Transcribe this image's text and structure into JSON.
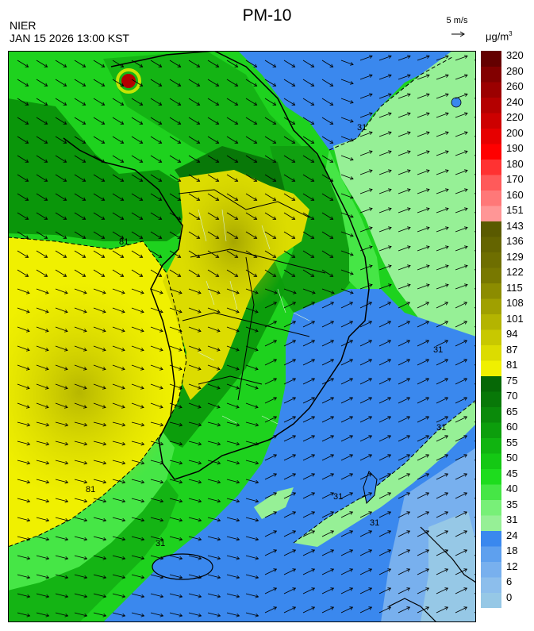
{
  "header": {
    "title": "PM-10",
    "agency": "NIER",
    "datetime": "JAN 15 2026 13:00 KST",
    "wind_ref": "5 m/s",
    "unit_base": "μg/m",
    "unit_exp": "3"
  },
  "legend": {
    "bins": [
      {
        "label": "0",
        "color": "#96c8e6"
      },
      {
        "label": "6",
        "color": "#8cbeec"
      },
      {
        "label": "12",
        "color": "#78b0ee"
      },
      {
        "label": "18",
        "color": "#5ea0ee"
      },
      {
        "label": "24",
        "color": "#3a88ee"
      },
      {
        "label": "31",
        "color": "#96f096"
      },
      {
        "label": "35",
        "color": "#78f078"
      },
      {
        "label": "40",
        "color": "#46e646"
      },
      {
        "label": "45",
        "color": "#1edc1e"
      },
      {
        "label": "50",
        "color": "#14c814"
      },
      {
        "label": "55",
        "color": "#10b410"
      },
      {
        "label": "60",
        "color": "#0c9e0c"
      },
      {
        "label": "65",
        "color": "#0a8a0a"
      },
      {
        "label": "70",
        "color": "#087808"
      },
      {
        "label": "75",
        "color": "#066806"
      },
      {
        "label": "81",
        "color": "#f0f000"
      },
      {
        "label": "87",
        "color": "#dcdc00"
      },
      {
        "label": "94",
        "color": "#c8c800"
      },
      {
        "label": "101",
        "color": "#b4b400"
      },
      {
        "label": "108",
        "color": "#a0a000"
      },
      {
        "label": "115",
        "color": "#8c8c00"
      },
      {
        "label": "122",
        "color": "#787800"
      },
      {
        "label": "129",
        "color": "#6e6e00"
      },
      {
        "label": "136",
        "color": "#646400"
      },
      {
        "label": "143",
        "color": "#5a5a00"
      },
      {
        "label": "151",
        "color": "#ff9696"
      },
      {
        "label": "160",
        "color": "#ff7878"
      },
      {
        "label": "170",
        "color": "#ff5a5a"
      },
      {
        "label": "180",
        "color": "#ff3232"
      },
      {
        "label": "190",
        "color": "#ff0000"
      },
      {
        "label": "200",
        "color": "#e60000"
      },
      {
        "label": "220",
        "color": "#cd0000"
      },
      {
        "label": "240",
        "color": "#b40000"
      },
      {
        "label": "260",
        "color": "#9b0000"
      },
      {
        "label": "280",
        "color": "#820000"
      },
      {
        "label": "320",
        "color": "#640000"
      }
    ]
  },
  "map": {
    "contour_labels": [
      "81",
      "31",
      "81",
      "31",
      "31",
      "31",
      "31",
      "31"
    ]
  }
}
